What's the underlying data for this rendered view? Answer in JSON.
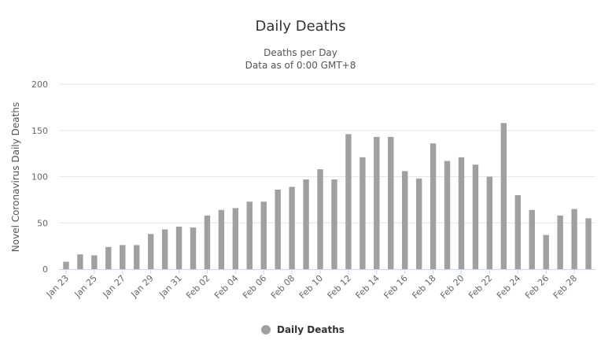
{
  "title": "Daily Deaths",
  "subtitles": [
    "Deaths per Day",
    "Data as of 0:00 GMT+8"
  ],
  "colors": {
    "bar": "#a0a0a0",
    "grid": "#e6e6e6",
    "text": "#666666",
    "title": "#333333"
  },
  "legend": {
    "label": "Daily Deaths",
    "marker_color": "#a0a0a0",
    "placement": "bottom-center"
  },
  "chart_data": {
    "type": "bar",
    "title": "Daily Deaths",
    "subtitle": "Deaths per Day / Data as of 0:00 GMT+8",
    "xlabel": "",
    "ylabel": "Novel Coronavirus Daily Deaths",
    "ylim": [
      0,
      200
    ],
    "yticks": [
      0,
      50,
      100,
      150,
      200
    ],
    "grid": true,
    "categories": [
      "Jan 23",
      "Jan 24",
      "Jan 25",
      "Jan 26",
      "Jan 27",
      "Jan 28",
      "Jan 29",
      "Jan 30",
      "Jan 31",
      "Feb 01",
      "Feb 02",
      "Feb 03",
      "Feb 04",
      "Feb 05",
      "Feb 06",
      "Feb 07",
      "Feb 08",
      "Feb 09",
      "Feb 10",
      "Feb 11",
      "Feb 12",
      "Feb 13",
      "Feb 14",
      "Feb 15",
      "Feb 16",
      "Feb 17",
      "Feb 18",
      "Feb 19",
      "Feb 20",
      "Feb 21",
      "Feb 22",
      "Feb 23",
      "Feb 24",
      "Feb 25",
      "Feb 26",
      "Feb 27",
      "Feb 28",
      "Feb 29"
    ],
    "tick_labels": [
      "Jan 23",
      "Jan 25",
      "Jan 27",
      "Jan 29",
      "Jan 31",
      "Feb 02",
      "Feb 04",
      "Feb 06",
      "Feb 08",
      "Feb 10",
      "Feb 12",
      "Feb 14",
      "Feb 16",
      "Feb 18",
      "Feb 20",
      "Feb 22",
      "Feb 24",
      "Feb 26",
      "Feb 28"
    ],
    "series": [
      {
        "name": "Daily Deaths",
        "values": [
          8,
          16,
          15,
          24,
          26,
          26,
          38,
          43,
          46,
          45,
          58,
          64,
          66,
          73,
          73,
          86,
          89,
          97,
          108,
          97,
          146,
          121,
          143,
          143,
          106,
          98,
          136,
          117,
          121,
          113,
          100,
          158,
          80,
          64,
          37,
          58,
          65,
          55
        ]
      }
    ]
  }
}
